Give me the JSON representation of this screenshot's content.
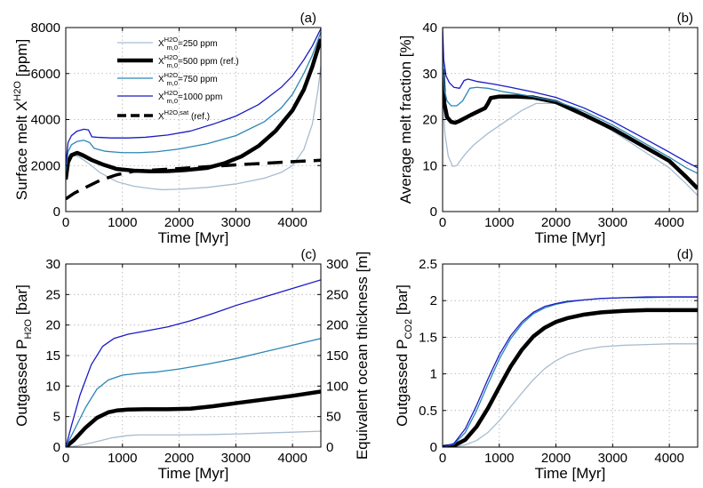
{
  "chart_data": [
    {
      "panel_label": "(a)",
      "type": "line",
      "xlabel": "Time [Myr]",
      "ylabel_main": "Surface melt X",
      "ylabel_sup": "H2O",
      "ylabel_tail": " [ppm]",
      "xlim": [
        0,
        4500
      ],
      "ylim": [
        0,
        8000
      ],
      "xticks": [
        0,
        1000,
        2000,
        3000,
        4000
      ],
      "yticks": [
        0,
        2000,
        4000,
        6000,
        8000
      ],
      "grid": true,
      "legend": {
        "position": "top-left",
        "entries": [
          {
            "sup": "H2O",
            "sub": "m,0",
            "text": "=250 ppm",
            "series": "250 ppm"
          },
          {
            "sup": "H2O",
            "sub": "m,0",
            "text": "=500 ppm (ref.)",
            "series": "500 ppm (ref.)"
          },
          {
            "sup": "H2O",
            "sub": "m,0",
            "text": "=750 ppm",
            "series": "750 ppm"
          },
          {
            "sup": "H2O",
            "sub": "m,0",
            "text": "=1000 ppm",
            "series": "1000 ppm"
          },
          {
            "sup": "H2O,sat",
            "sub": "",
            "text": " (ref.)",
            "series": "saturation (ref.)"
          }
        ]
      },
      "series": [
        {
          "name": "250 ppm",
          "color": "#a8bcd0",
          "width": 1.3,
          "dash": "",
          "x": [
            0,
            30,
            80,
            150,
            250,
            400,
            600,
            900,
            1200,
            1500,
            1700,
            2000,
            2500,
            3000,
            3500,
            3800,
            4000,
            4200,
            4350,
            4450,
            4500
          ],
          "y": [
            1300,
            2100,
            2400,
            2450,
            2350,
            2100,
            1700,
            1300,
            1100,
            1000,
            950,
            970,
            1050,
            1200,
            1450,
            1700,
            2000,
            2700,
            3800,
            5300,
            6300
          ]
        },
        {
          "name": "500 ppm (ref.)",
          "color": "#000000",
          "width": 4.5,
          "dash": "",
          "x": [
            0,
            40,
            100,
            200,
            300,
            450,
            650,
            900,
            1200,
            1500,
            1800,
            2100,
            2500,
            2800,
            3100,
            3400,
            3700,
            4000,
            4200,
            4350,
            4450,
            4500
          ],
          "y": [
            1400,
            2150,
            2450,
            2550,
            2450,
            2250,
            2050,
            1850,
            1780,
            1750,
            1760,
            1800,
            1900,
            2100,
            2400,
            2850,
            3500,
            4400,
            5300,
            6300,
            7100,
            7500
          ]
        },
        {
          "name": "750 ppm",
          "color": "#2a86b4",
          "width": 1.3,
          "dash": "",
          "x": [
            0,
            40,
            100,
            200,
            320,
            420,
            500,
            700,
            1000,
            1300,
            1600,
            2000,
            2500,
            3000,
            3500,
            3800,
            4000,
            4200,
            4350,
            4500
          ],
          "y": [
            1700,
            2600,
            2900,
            3050,
            3100,
            3000,
            2750,
            2620,
            2560,
            2560,
            2600,
            2720,
            2950,
            3300,
            3900,
            4500,
            5100,
            6000,
            6800,
            7800
          ]
        },
        {
          "name": "1000 ppm",
          "color": "#1a1ac4",
          "width": 1.3,
          "dash": "",
          "x": [
            0,
            40,
            100,
            200,
            320,
            400,
            460,
            550,
            800,
            1100,
            1400,
            1800,
            2200,
            2600,
            3000,
            3400,
            3800,
            4000,
            4200,
            4350,
            4500
          ],
          "y": [
            2000,
            3000,
            3300,
            3500,
            3580,
            3550,
            3250,
            3230,
            3200,
            3200,
            3230,
            3330,
            3500,
            3800,
            4150,
            4650,
            5400,
            5900,
            6600,
            7200,
            7950
          ]
        },
        {
          "name": "saturation (ref.)",
          "color": "#000000",
          "width": 3.5,
          "dash": "17 9",
          "x": [
            0,
            150,
            350,
            600,
            900,
            1200,
            1500,
            2000,
            2500,
            3000,
            3500,
            4000,
            4500
          ],
          "y": [
            550,
            800,
            1050,
            1350,
            1600,
            1750,
            1800,
            1870,
            1950,
            2030,
            2100,
            2170,
            2230
          ]
        }
      ]
    },
    {
      "panel_label": "(b)",
      "type": "line",
      "xlabel": "Time [Myr]",
      "ylabel": "Average melt fraction [%]",
      "xlim": [
        0,
        4500
      ],
      "ylim": [
        0,
        40
      ],
      "xticks": [
        0,
        1000,
        2000,
        3000,
        4000
      ],
      "yticks": [
        0,
        10,
        20,
        30,
        40
      ],
      "grid": true,
      "series": [
        {
          "name": "250 ppm",
          "color": "#a8bcd0",
          "width": 1.3,
          "x": [
            0,
            40,
            100,
            180,
            250,
            320,
            400,
            550,
            800,
            1100,
            1400,
            1650,
            2000,
            2500,
            3000,
            3500,
            4000,
            4300,
            4500
          ],
          "y": [
            27,
            17,
            12,
            9.8,
            10,
            11.2,
            12.5,
            14.5,
            17,
            19.5,
            22,
            23.5,
            23.5,
            21,
            17.5,
            13.5,
            9.5,
            6,
            3.5
          ]
        },
        {
          "name": "500 ppm (ref.)",
          "color": "#000000",
          "width": 4.5,
          "x": [
            0,
            30,
            80,
            150,
            220,
            300,
            500,
            750,
            800,
            850,
            1000,
            1300,
            1600,
            2000,
            2500,
            3000,
            3500,
            4000,
            4300,
            4500
          ],
          "y": [
            31,
            23.5,
            20.5,
            19.5,
            19.3,
            19.7,
            21,
            22.5,
            23.5,
            24.7,
            25,
            25,
            24.8,
            23.8,
            21,
            18,
            14.5,
            11,
            7.5,
            5
          ]
        },
        {
          "name": "750 ppm",
          "color": "#2a86b4",
          "width": 1.3,
          "x": [
            0,
            30,
            80,
            150,
            250,
            350,
            480,
            600,
            800,
            1100,
            1500,
            2000,
            2500,
            3000,
            3500,
            4000,
            4300,
            4500
          ],
          "y": [
            35,
            26.5,
            24,
            23,
            23,
            24,
            26.8,
            27,
            26.8,
            26,
            25.2,
            24,
            21.8,
            18.8,
            15.3,
            11.8,
            9.5,
            8.3
          ]
        },
        {
          "name": "1000 ppm",
          "color": "#1a1ac4",
          "width": 1.3,
          "x": [
            0,
            20,
            60,
            120,
            200,
            300,
            380,
            450,
            600,
            900,
            1200,
            1600,
            2000,
            2500,
            3000,
            3500,
            4000,
            4300,
            4500
          ],
          "y": [
            40,
            33,
            29.5,
            28,
            27,
            26.8,
            28.5,
            28.8,
            28.3,
            27.7,
            27,
            26,
            24.8,
            22.5,
            19.6,
            16.3,
            12.9,
            10.8,
            9.5
          ]
        }
      ]
    },
    {
      "panel_label": "(c)",
      "type": "line",
      "xlabel": "Time [Myr]",
      "ylabel_main": "Outgassed P",
      "ylabel_sub": "H2O",
      "ylabel_tail": " [bar]",
      "ylabel_right": "Equivalent ocean thickness [m]",
      "xlim": [
        0,
        4500
      ],
      "ylim": [
        0,
        30
      ],
      "ylim_right": [
        0,
        300
      ],
      "xticks": [
        0,
        1000,
        2000,
        3000,
        4000
      ],
      "yticks": [
        0,
        5,
        10,
        15,
        20,
        25,
        30
      ],
      "yticks_right": [
        0,
        50,
        100,
        150,
        200,
        250,
        300
      ],
      "grid": true,
      "series": [
        {
          "name": "250 ppm",
          "color": "#a8bcd0",
          "width": 1.3,
          "x": [
            0,
            200,
            500,
            800,
            1100,
            1300,
            1600,
            2000,
            2500,
            3000,
            3500,
            4000,
            4500
          ],
          "y": [
            0,
            0.2,
            0.8,
            1.5,
            1.9,
            2.0,
            2.0,
            2.0,
            2.05,
            2.15,
            2.3,
            2.45,
            2.6
          ]
        },
        {
          "name": "500 ppm (ref.)",
          "color": "#000000",
          "width": 4.5,
          "x": [
            0,
            150,
            350,
            550,
            750,
            900,
            1100,
            1400,
            1800,
            2200,
            2600,
            3000,
            3500,
            4000,
            4500
          ],
          "y": [
            0,
            1.2,
            3.2,
            4.8,
            5.7,
            6.0,
            6.15,
            6.2,
            6.2,
            6.3,
            6.7,
            7.2,
            7.8,
            8.4,
            9.1
          ]
        },
        {
          "name": "750 ppm",
          "color": "#2a86b4",
          "width": 1.3,
          "x": [
            0,
            150,
            350,
            550,
            750,
            1000,
            1300,
            1600,
            2000,
            2500,
            3000,
            3500,
            4000,
            4500
          ],
          "y": [
            0,
            2.8,
            6.5,
            9.5,
            11,
            11.8,
            12.1,
            12.3,
            12.8,
            13.6,
            14.5,
            15.6,
            16.7,
            17.8
          ]
        },
        {
          "name": "1000 ppm",
          "color": "#1a1ac4",
          "width": 1.3,
          "x": [
            0,
            100,
            250,
            450,
            650,
            850,
            1100,
            1400,
            1800,
            2200,
            2600,
            3000,
            3500,
            4000,
            4500
          ],
          "y": [
            0,
            3.5,
            8.5,
            13.5,
            16.5,
            17.8,
            18.5,
            19,
            19.7,
            20.7,
            21.9,
            23.2,
            24.6,
            26,
            27.4
          ]
        }
      ]
    },
    {
      "panel_label": "(d)",
      "type": "line",
      "xlabel": "Time [Myr]",
      "ylabel_main": "Outgassed P",
      "ylabel_sub": "CO2",
      "ylabel_tail": " [bar]",
      "xlim": [
        0,
        4500
      ],
      "ylim": [
        0,
        2.5
      ],
      "xticks": [
        0,
        1000,
        2000,
        3000,
        4000
      ],
      "yticks": [
        0,
        0.5,
        1,
        1.5,
        2,
        2.5
      ],
      "ytick_labels": [
        "0",
        "0.5",
        "1",
        "1.5",
        "2",
        "2.5"
      ],
      "grid": true,
      "series": [
        {
          "name": "250 ppm",
          "color": "#a8bcd0",
          "width": 1.3,
          "x": [
            0,
            200,
            400,
            600,
            800,
            1000,
            1200,
            1400,
            1600,
            1800,
            2000,
            2200,
            2500,
            2800,
            3200,
            3600,
            4000,
            4500
          ],
          "y": [
            0,
            0.005,
            0.03,
            0.09,
            0.2,
            0.36,
            0.55,
            0.74,
            0.92,
            1.07,
            1.18,
            1.26,
            1.33,
            1.37,
            1.39,
            1.4,
            1.41,
            1.41
          ]
        },
        {
          "name": "500 ppm (ref.)",
          "color": "#000000",
          "width": 4.5,
          "x": [
            0,
            200,
            400,
            600,
            800,
            1000,
            1200,
            1400,
            1600,
            1800,
            2000,
            2200,
            2500,
            2800,
            3200,
            3600,
            4000,
            4500
          ],
          "y": [
            0,
            0.02,
            0.1,
            0.28,
            0.53,
            0.82,
            1.1,
            1.33,
            1.51,
            1.63,
            1.71,
            1.76,
            1.81,
            1.84,
            1.86,
            1.87,
            1.87,
            1.87
          ]
        },
        {
          "name": "750 ppm",
          "color": "#2a86b4",
          "width": 1.3,
          "x": [
            0,
            200,
            400,
            600,
            800,
            1000,
            1200,
            1400,
            1600,
            1800,
            2000,
            2200,
            2500,
            2800,
            3200,
            3600,
            4000,
            4500
          ],
          "y": [
            0,
            0.04,
            0.2,
            0.5,
            0.86,
            1.2,
            1.48,
            1.68,
            1.82,
            1.9,
            1.95,
            1.98,
            2.01,
            2.03,
            2.04,
            2.04,
            2.05,
            2.05
          ]
        },
        {
          "name": "1000 ppm",
          "color": "#1a1ac4",
          "width": 1.3,
          "x": [
            0,
            200,
            400,
            600,
            800,
            1000,
            1200,
            1400,
            1600,
            1800,
            2000,
            2200,
            2500,
            2800,
            3200,
            3600,
            4000,
            4500
          ],
          "y": [
            0,
            0.05,
            0.25,
            0.57,
            0.93,
            1.26,
            1.52,
            1.71,
            1.84,
            1.92,
            1.96,
            1.99,
            2.01,
            2.03,
            2.04,
            2.05,
            2.05,
            2.05
          ]
        }
      ]
    }
  ]
}
